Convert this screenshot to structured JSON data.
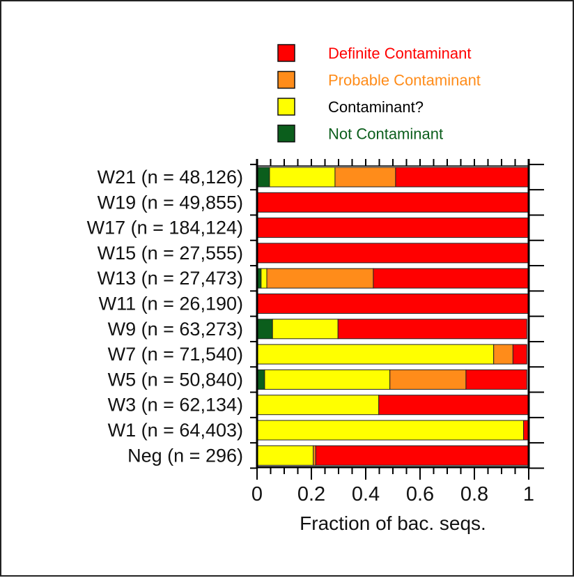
{
  "chart_data": {
    "type": "bar",
    "orientation": "horizontal",
    "stacked": true,
    "title": "",
    "xlabel": "Fraction of bac. seqs.",
    "ylabel": "",
    "xlim": [
      0,
      1
    ],
    "xticks": [
      "0",
      "0.2",
      "0.4",
      "0.6",
      "0.8",
      "1"
    ],
    "grid": false,
    "legend_position": "top",
    "categories": [
      "W21 (n = 48,126)",
      "W19 (n = 49,855)",
      "W17 (n = 184,124)",
      "W15 (n = 27,555)",
      "W13 (n = 27,473)",
      "W11 (n = 26,190)",
      "W9 (n = 63,273)",
      "W7 (n = 71,540)",
      "W5 (n = 50,840)",
      "W3 (n = 62,134)",
      "W1 (n = 64,403)",
      "Neg (n = 296)"
    ],
    "series": [
      {
        "name": "Not Contaminant",
        "color": "#0b5e1c",
        "values": [
          0.046,
          0,
          0,
          0,
          0.015,
          0,
          0.057,
          0,
          0.028,
          0,
          0,
          0
        ]
      },
      {
        "name": "Contaminant?",
        "color": "#ffff00",
        "values": [
          0.241,
          0,
          0,
          0,
          0.021,
          0,
          0.241,
          0.871,
          0.461,
          0.448,
          0.981,
          0.207
        ]
      },
      {
        "name": "Probable Contaminant",
        "color": "#ff8c1a",
        "values": [
          0.223,
          0,
          0,
          0,
          0.392,
          0,
          0,
          0.071,
          0.28,
          0,
          0,
          0.009
        ]
      },
      {
        "name": "Definite Contaminant",
        "color": "#ff0000",
        "values": [
          0.49,
          1,
          1,
          1,
          0.572,
          1,
          0.695,
          0.051,
          0.224,
          0.552,
          0.019,
          0.784
        ]
      }
    ],
    "legend_order": [
      "Definite Contaminant",
      "Probable Contaminant",
      "Contaminant?",
      "Not Contaminant"
    ],
    "legend_text_colors": {
      "Definite Contaminant": "#ff0000",
      "Probable Contaminant": "#ff8c1a",
      "Contaminant?": "#000000",
      "Not Contaminant": "#0b5e1c"
    }
  }
}
